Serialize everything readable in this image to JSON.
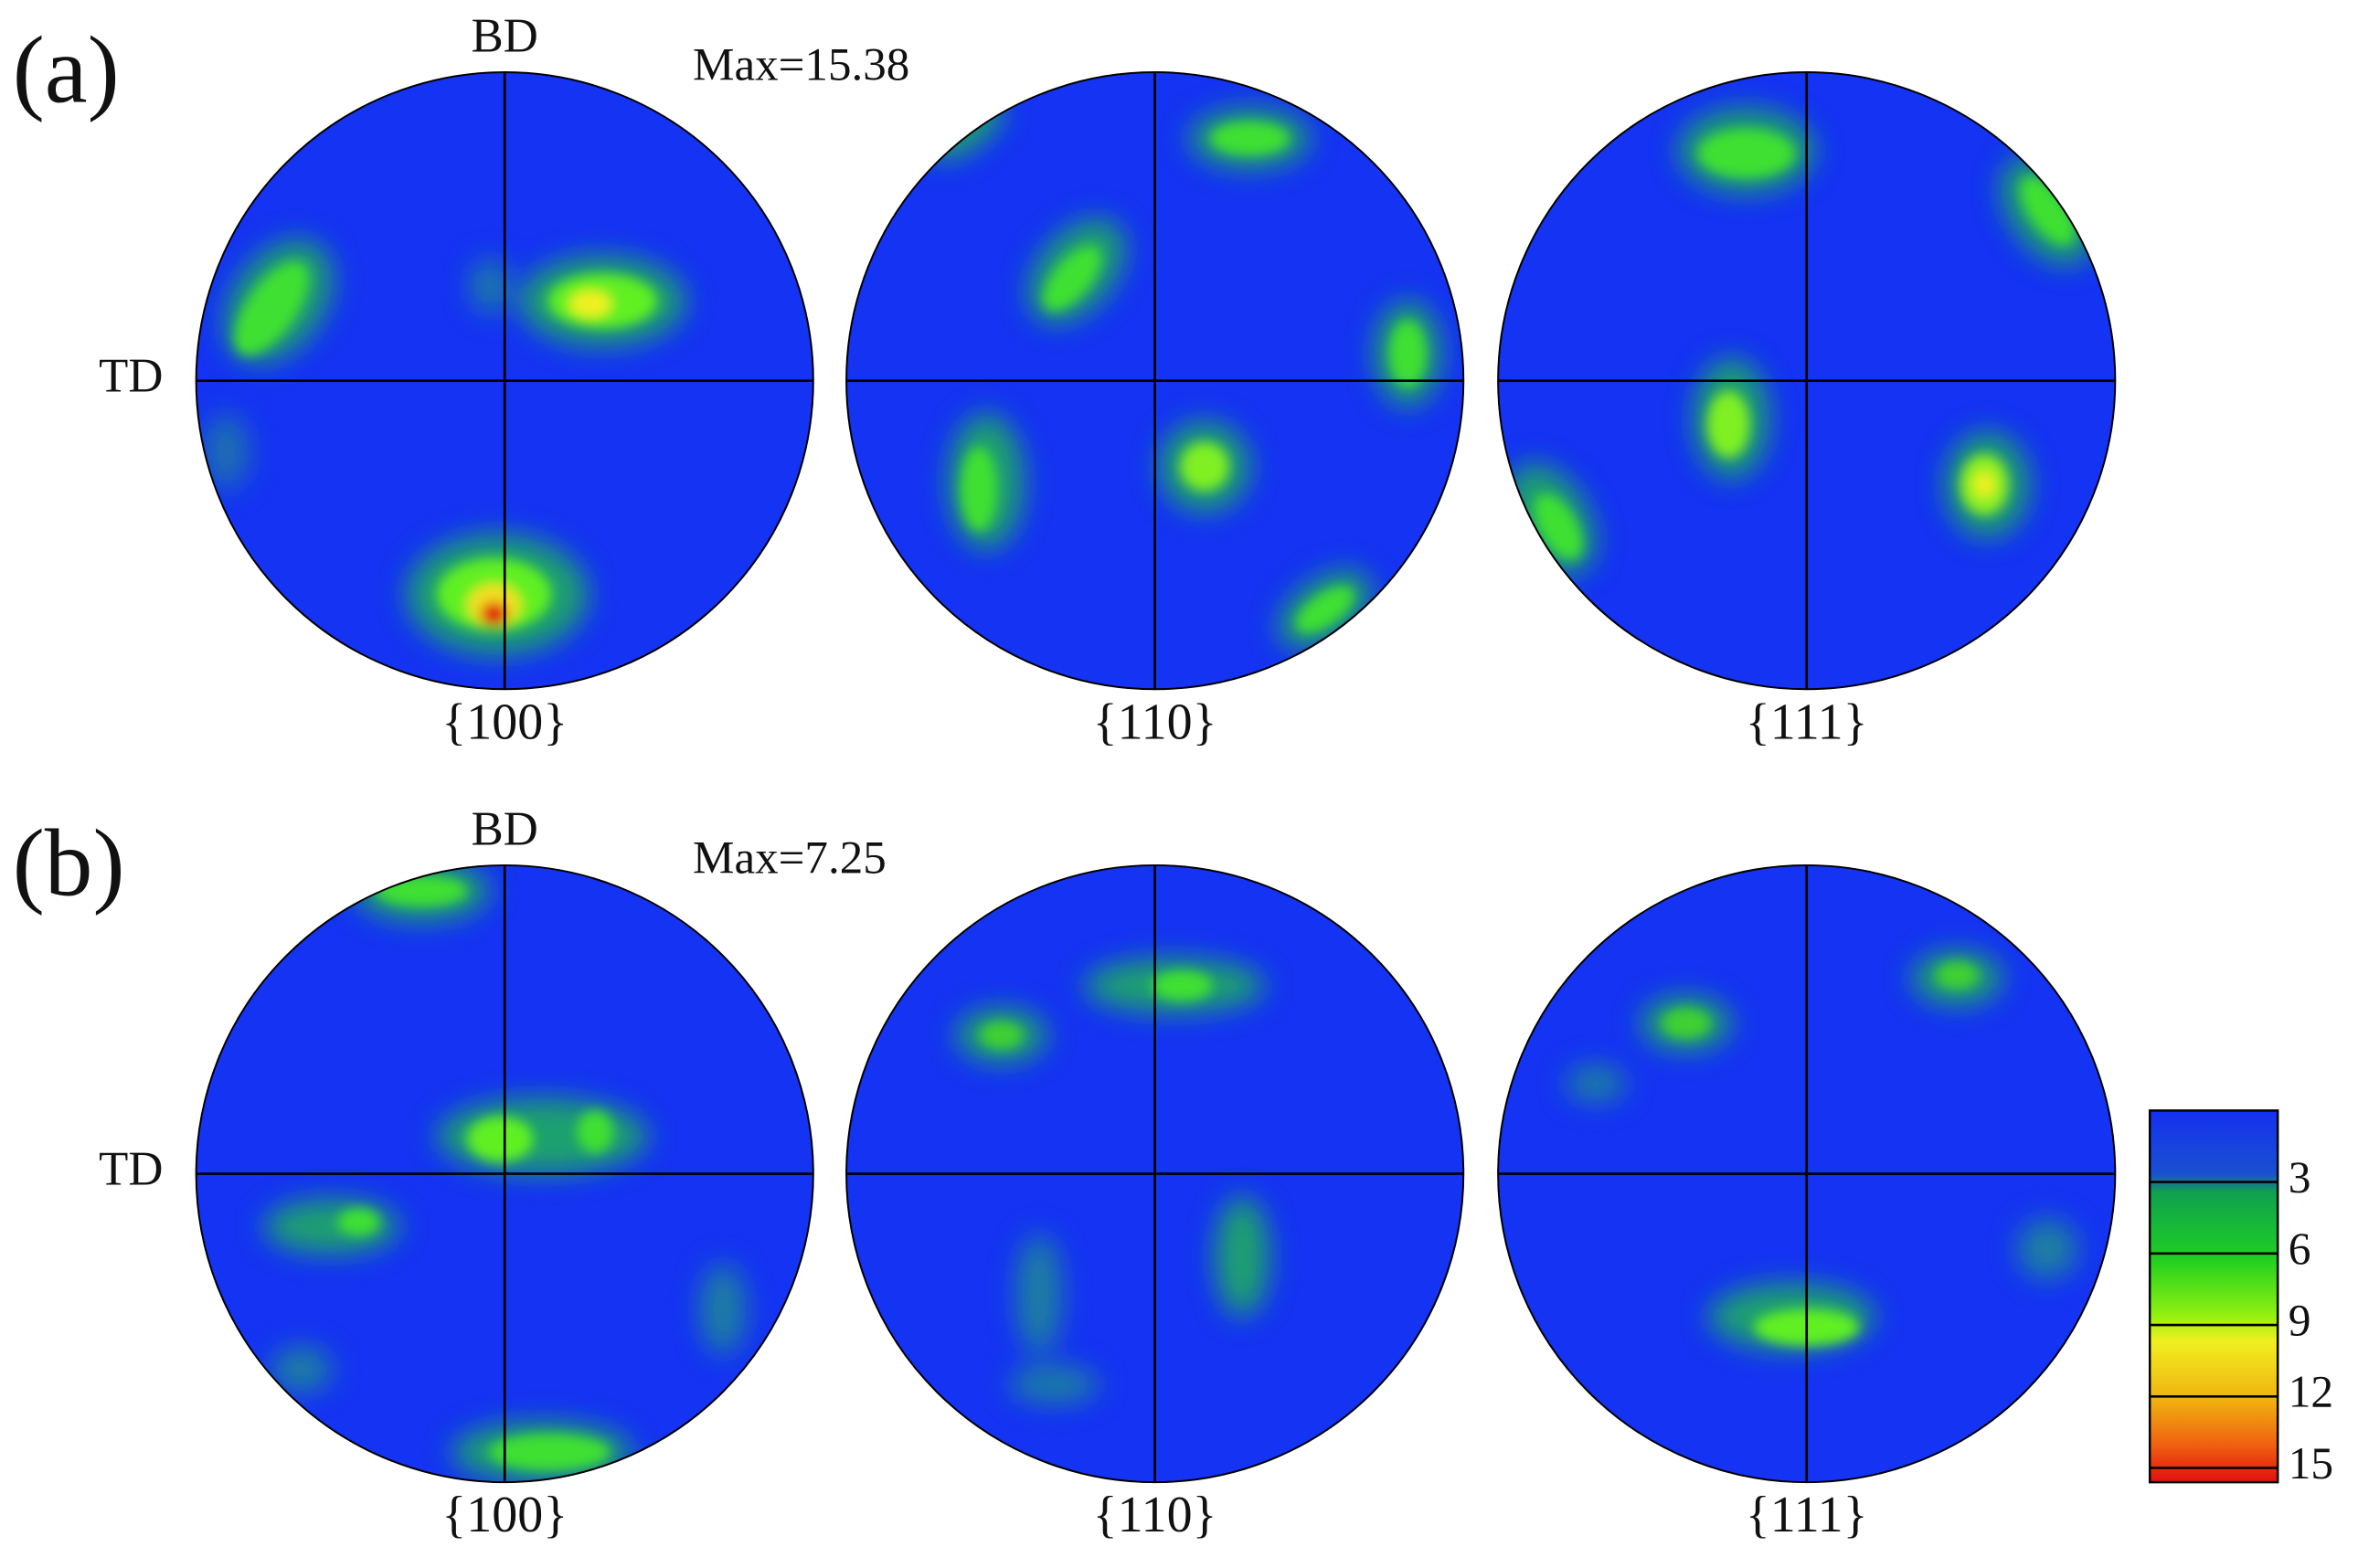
{
  "panels": [
    {
      "label": "(a)",
      "top": "BD",
      "side": "TD",
      "max": "Max=15.38",
      "poles": [
        "{100}",
        "{110}",
        "{111}"
      ]
    },
    {
      "label": "(b)",
      "top": "BD",
      "side": "TD",
      "max": "Max=7.25",
      "poles": [
        "{100}",
        "{110}",
        "{111}"
      ]
    }
  ],
  "colorbar": {
    "ticks": [
      3,
      6,
      9,
      12,
      15
    ]
  }
}
